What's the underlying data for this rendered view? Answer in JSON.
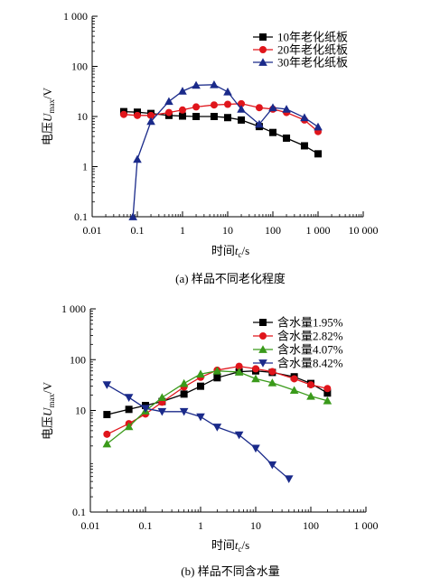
{
  "chart_data": [
    {
      "type": "line",
      "caption": "(a) 样品不同老化程度",
      "xlabel": {
        "prefix": "时间",
        "var": "t",
        "sub": "c",
        "suffix": "/s"
      },
      "ylabel": {
        "prefix": "电压",
        "var": "U",
        "sub": "max",
        "suffix": "/V"
      },
      "x_scale": "log",
      "y_scale": "log",
      "xlim": [
        0.01,
        10000
      ],
      "ylim": [
        0.1,
        1000
      ],
      "x_ticks": [
        {
          "value": 0.01,
          "label": "0.01"
        },
        {
          "value": 0.1,
          "label": "0.1"
        },
        {
          "value": 1,
          "label": "1"
        },
        {
          "value": 10,
          "label": "10"
        },
        {
          "value": 100,
          "label": "100"
        },
        {
          "value": 1000,
          "label": "1 000"
        },
        {
          "value": 10000,
          "label": "10 000"
        }
      ],
      "y_ticks": [
        {
          "value": 0.1,
          "label": "0.1"
        },
        {
          "value": 1,
          "label": "1"
        },
        {
          "value": 10,
          "label": "10"
        },
        {
          "value": 100,
          "label": "100"
        },
        {
          "value": 1000,
          "label": "1 000"
        }
      ],
      "grid": false,
      "legend_position": "top-right",
      "series": [
        {
          "name": "10年老化纸板",
          "color": "#000000",
          "marker": "square",
          "x": [
            0.05,
            0.1,
            0.2,
            0.5,
            1,
            2,
            5,
            10,
            20,
            50,
            100,
            200,
            500,
            1000
          ],
          "y": [
            12.5,
            12.2,
            11.5,
            10.5,
            10.2,
            10,
            10,
            9.5,
            8.5,
            6.3,
            4.8,
            3.7,
            2.6,
            1.8
          ]
        },
        {
          "name": "20年老化纸板",
          "color": "#e0151b",
          "marker": "circle",
          "x": [
            0.05,
            0.1,
            0.2,
            0.5,
            1,
            2,
            5,
            10,
            20,
            50,
            100,
            200,
            500,
            1000
          ],
          "y": [
            11,
            10.5,
            10.5,
            12,
            13.5,
            15.5,
            17,
            17.5,
            18,
            15,
            14,
            12,
            8.5,
            5
          ]
        },
        {
          "name": "30年老化纸板",
          "color": "#1a2a8a",
          "marker": "triangle-up",
          "x": [
            0.08,
            0.1,
            0.2,
            0.5,
            1,
            2,
            5,
            10,
            20,
            50,
            100,
            200,
            500,
            1000
          ],
          "y": [
            0.1,
            1.4,
            8,
            20,
            32,
            42,
            43,
            31,
            14,
            7,
            15,
            14,
            9.5,
            6.2
          ]
        }
      ]
    },
    {
      "type": "line",
      "caption": "(b) 样品不同含水量",
      "xlabel": {
        "prefix": "时间",
        "var": "t",
        "sub": "c",
        "suffix": "/s"
      },
      "ylabel": {
        "prefix": "电压",
        "var": "U",
        "sub": "max",
        "suffix": "/V"
      },
      "x_scale": "log",
      "y_scale": "log",
      "xlim": [
        0.01,
        1000
      ],
      "ylim": [
        0.1,
        1000
      ],
      "x_ticks": [
        {
          "value": 0.01,
          "label": "0.01"
        },
        {
          "value": 0.1,
          "label": "0.1"
        },
        {
          "value": 1,
          "label": "1"
        },
        {
          "value": 10,
          "label": "10"
        },
        {
          "value": 100,
          "label": "100"
        },
        {
          "value": 1000,
          "label": "1 000"
        }
      ],
      "y_ticks": [
        {
          "value": 0.1,
          "label": "0.1"
        },
        {
          "value": 10,
          "label": "10"
        },
        {
          "value": 100,
          "label": "100"
        },
        {
          "value": 1000,
          "label": "1 000"
        }
      ],
      "grid": false,
      "legend_position": "top-right",
      "series": [
        {
          "name": "含水量1.95%",
          "color": "#000000",
          "marker": "square",
          "x": [
            0.02,
            0.05,
            0.1,
            0.2,
            0.5,
            1,
            2,
            5,
            10,
            20,
            50,
            100,
            200
          ],
          "y": [
            8.3,
            10.5,
            12.5,
            15,
            21,
            30,
            44,
            58,
            60,
            56,
            46,
            34,
            22
          ]
        },
        {
          "name": "含水量2.82%",
          "color": "#e0151b",
          "marker": "circle",
          "x": [
            0.02,
            0.05,
            0.1,
            0.2,
            0.5,
            1,
            2,
            5,
            10,
            20,
            50,
            100,
            200
          ],
          "y": [
            3.4,
            5.5,
            8.5,
            14.5,
            29,
            45,
            62,
            74,
            66,
            58,
            42,
            32,
            27
          ]
        },
        {
          "name": "含水量4.07%",
          "color": "#3a9a1a",
          "marker": "triangle-up",
          "x": [
            0.02,
            0.05,
            0.1,
            0.2,
            0.5,
            1,
            2,
            5,
            10,
            20,
            50,
            100,
            200
          ],
          "y": [
            2.2,
            4.8,
            9.8,
            18,
            34,
            52,
            60,
            57,
            42,
            35,
            25,
            19,
            15.5
          ]
        },
        {
          "name": "含水量8.42%",
          "color": "#1a2a8a",
          "marker": "triangle-down",
          "x": [
            0.02,
            0.05,
            0.1,
            0.2,
            0.5,
            1,
            2,
            5,
            10,
            20,
            40
          ],
          "y": [
            32,
            18,
            11,
            9.5,
            9.5,
            7.5,
            4.7,
            3.3,
            1.8,
            0.85,
            0.45
          ]
        }
      ]
    }
  ]
}
